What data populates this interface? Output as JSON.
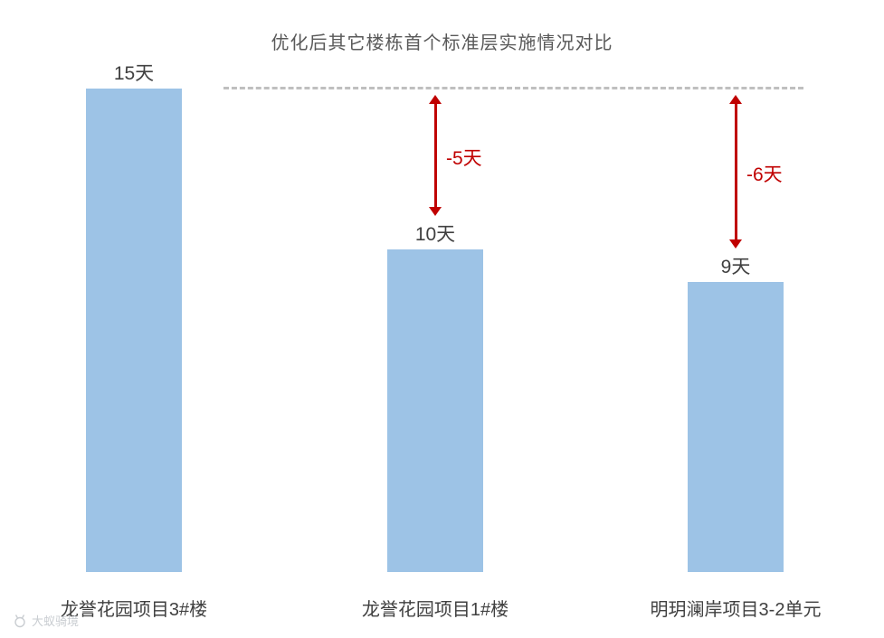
{
  "chart_data": {
    "type": "bar",
    "title": "优化后其它楼栋首个标准层实施情况对比",
    "categories": [
      "龙誉花园项目3#楼",
      "龙誉花园项目1#楼",
      "明玥澜岸项目3-2单元"
    ],
    "values": [
      15,
      10,
      9
    ],
    "value_labels": [
      "15天",
      "10天",
      "9天"
    ],
    "unit": "天",
    "xlabel": "",
    "ylabel": "",
    "ylim": [
      0,
      15
    ],
    "grid": false,
    "legend": "none",
    "bar_color": "#9DC3E6",
    "reference_line": {
      "value": 15,
      "style": "dashed",
      "color": "#BFBFBF"
    },
    "annotations": [
      {
        "category_index": 1,
        "label": "-5天",
        "color": "#C00000",
        "type": "double-arrow"
      },
      {
        "category_index": 2,
        "label": "-6天",
        "color": "#C00000",
        "type": "double-arrow"
      }
    ]
  },
  "watermark": {
    "text": "大蚁骑境"
  }
}
